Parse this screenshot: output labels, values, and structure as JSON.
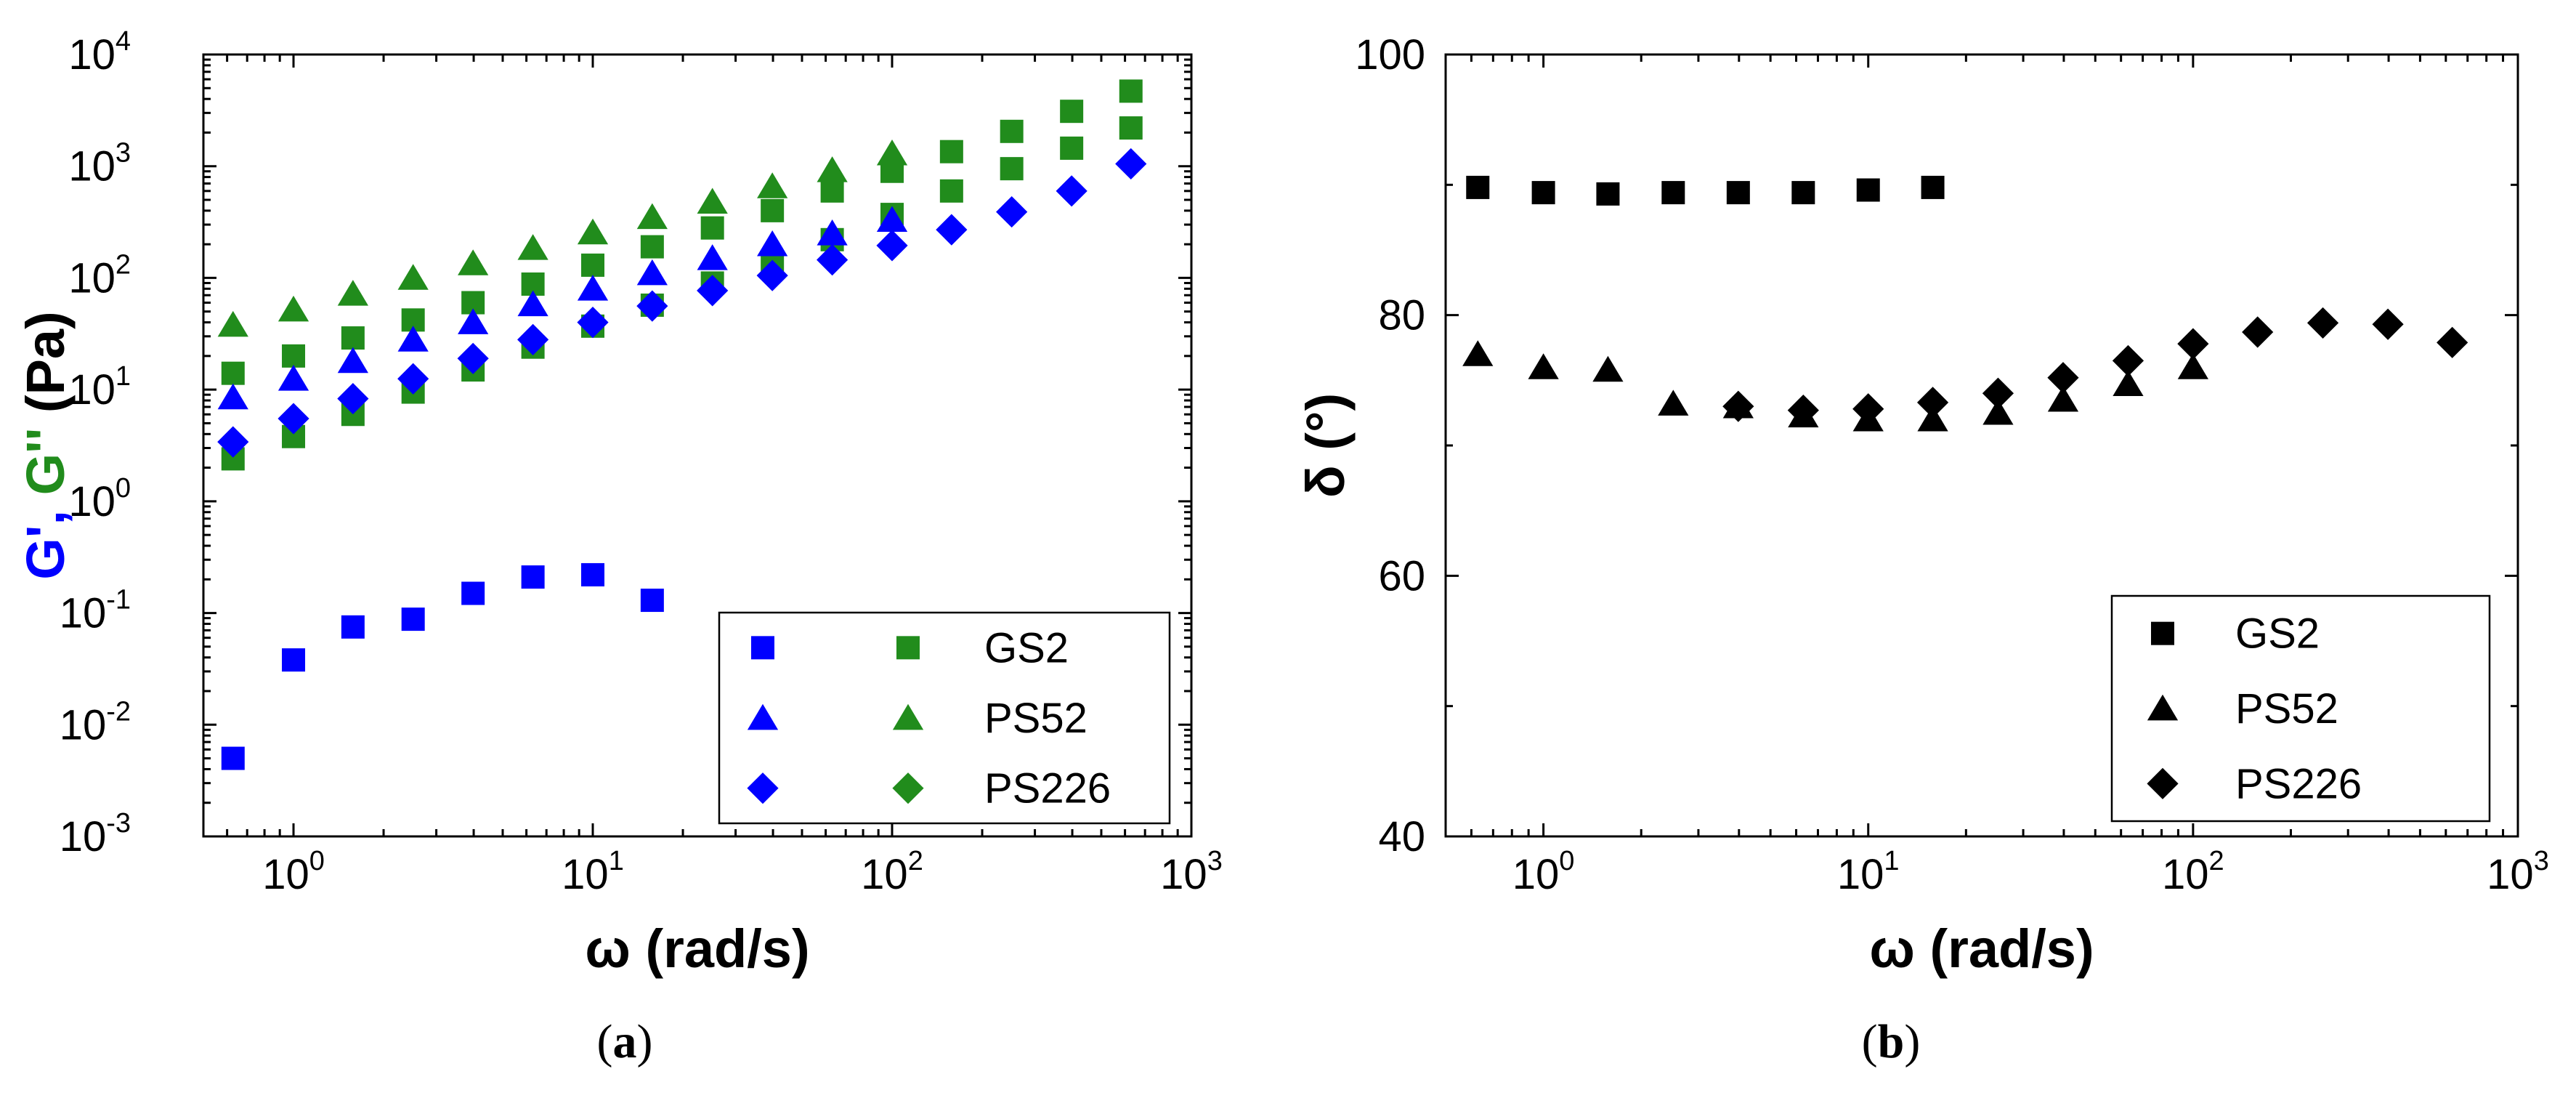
{
  "colors": {
    "storage": "#0000ff",
    "loss": "#218c1c",
    "black": "#000000"
  },
  "chart_data": [
    {
      "panel": "a",
      "type": "scatter",
      "scale": "log-log",
      "caption_letter": "a",
      "xlabel": "ω (rad/s)",
      "ylabel_parts": [
        {
          "text": "G'",
          "color": "#0000ff"
        },
        {
          "text": ", ",
          "color": "#0000ff"
        },
        {
          "text": "G''",
          "color": "#218c1c"
        },
        {
          "text": " (Pa)",
          "color": "#000000"
        }
      ],
      "xlim": [
        0.5,
        1000
      ],
      "ylim": [
        0.001,
        10000
      ],
      "x_ticks": [
        {
          "base": "10",
          "exp": "0"
        },
        {
          "base": "10",
          "exp": "1"
        },
        {
          "base": "10",
          "exp": "2"
        },
        {
          "base": "10",
          "exp": "3"
        }
      ],
      "y_ticks": [
        {
          "base": "10",
          "exp": "-3"
        },
        {
          "base": "10",
          "exp": "-2"
        },
        {
          "base": "10",
          "exp": "-1"
        },
        {
          "base": "10",
          "exp": "0"
        },
        {
          "base": "10",
          "exp": "1"
        },
        {
          "base": "10",
          "exp": "2"
        },
        {
          "base": "10",
          "exp": "3"
        },
        {
          "base": "10",
          "exp": "4"
        }
      ],
      "legend": {
        "position": "bottom-right",
        "entries": [
          {
            "label": "GS2",
            "marker": "square"
          },
          {
            "label": "PS52",
            "marker": "triangle"
          },
          {
            "label": "PS226",
            "marker": "diamond"
          }
        ]
      },
      "series": [
        {
          "name": "GS2 G'",
          "marker": "square",
          "color": "#0000ff",
          "x": [
            0.628,
            1.0,
            1.58,
            2.51,
            3.98,
            6.31,
            10.0,
            15.8
          ],
          "y": [
            0.005,
            0.038,
            0.075,
            0.088,
            0.15,
            0.21,
            0.22,
            0.13
          ]
        },
        {
          "name": "GS2 G''",
          "marker": "square",
          "color": "#218c1c",
          "x": [
            0.628,
            1.0,
            1.58,
            2.51,
            3.98,
            6.31,
            10.0,
            15.8,
            25.1,
            39.8,
            63.1,
            100,
            158,
            251,
            398,
            628
          ],
          "y": [
            14,
            20,
            29,
            42,
            60,
            88,
            130,
            190,
            280,
            400,
            600,
            900,
            1350,
            2050,
            3100,
            4700
          ]
        },
        {
          "name": "GS2 G'' (lower)",
          "marker": "square",
          "color": "#218c1c",
          "x": [
            0.628,
            1.0,
            1.58,
            2.51,
            3.98,
            6.31,
            10.0,
            15.8,
            25.1,
            39.8,
            63.1,
            100,
            158,
            251,
            398,
            628
          ],
          "y": [
            2.4,
            3.8,
            6,
            9.5,
            15,
            24,
            37,
            57,
            90,
            140,
            220,
            370,
            600,
            950,
            1450,
            2200
          ]
        },
        {
          "name": "PS52 G'",
          "marker": "triangle",
          "color": "#0000ff",
          "x": [
            0.628,
            1.0,
            1.58,
            2.51,
            3.98,
            6.31,
            10.0,
            15.8,
            25.1,
            39.8,
            63.1,
            100
          ],
          "y": [
            8.5,
            12.5,
            18,
            28,
            40,
            58,
            80,
            110,
            150,
            200,
            250,
            330
          ]
        },
        {
          "name": "PS52 G''",
          "marker": "triangle",
          "color": "#218c1c",
          "x": [
            0.628,
            1.0,
            1.58,
            2.51,
            3.98,
            6.31,
            10.0,
            15.8,
            25.1,
            39.8,
            63.1,
            100
          ],
          "y": [
            38,
            52,
            72,
            100,
            135,
            185,
            255,
            350,
            480,
            660,
            920,
            1300
          ]
        },
        {
          "name": "PS226 G'",
          "marker": "diamond",
          "color": "#0000ff",
          "x": [
            0.628,
            1.0,
            1.58,
            2.51,
            3.98,
            6.31,
            10.0,
            15.8,
            25.1,
            39.8,
            63.1,
            100,
            158,
            251,
            398,
            628
          ],
          "y": [
            3.4,
            5.5,
            8.3,
            12.5,
            19,
            28,
            40,
            56,
            77,
            105,
            145,
            195,
            270,
            390,
            600,
            1050
          ]
        }
      ]
    },
    {
      "panel": "b",
      "type": "scatter",
      "scale": "log-x",
      "caption_letter": "b",
      "xlabel": "ω (rad/s)",
      "ylabel": "δ (°)",
      "xlim": [
        0.5,
        1000
      ],
      "ylim": [
        40,
        100
      ],
      "x_ticks": [
        {
          "base": "10",
          "exp": "0"
        },
        {
          "base": "10",
          "exp": "1"
        },
        {
          "base": "10",
          "exp": "2"
        },
        {
          "base": "10",
          "exp": "3"
        }
      ],
      "y_ticks": [
        "40",
        "60",
        "80",
        "100"
      ],
      "legend": {
        "position": "bottom-right",
        "entries": [
          {
            "label": "GS2",
            "marker": "square"
          },
          {
            "label": "PS52",
            "marker": "triangle"
          },
          {
            "label": "PS226",
            "marker": "diamond"
          }
        ]
      },
      "series": [
        {
          "name": "GS2",
          "marker": "square",
          "color": "#000000",
          "x": [
            0.628,
            1.0,
            1.58,
            2.51,
            3.98,
            6.31,
            10.0,
            15.8
          ],
          "y": [
            89.8,
            89.4,
            89.3,
            89.4,
            89.4,
            89.4,
            89.6,
            89.8
          ]
        },
        {
          "name": "PS52",
          "marker": "triangle",
          "color": "#000000",
          "x": [
            0.628,
            1.0,
            1.58,
            2.51,
            3.98,
            6.31,
            10.0,
            15.8,
            25.1,
            39.8,
            63.1,
            100
          ],
          "y": [
            77.0,
            76.0,
            75.8,
            73.2,
            73.0,
            72.3,
            72.0,
            72.0,
            72.5,
            73.5,
            74.7,
            76.0
          ]
        },
        {
          "name": "PS226",
          "marker": "diamond",
          "color": "#000000",
          "x": [
            3.98,
            6.31,
            10.0,
            15.8,
            25.1,
            39.8,
            63.1,
            100,
            158,
            251,
            398,
            628
          ],
          "y": [
            73.0,
            72.7,
            72.8,
            73.3,
            74.0,
            75.2,
            76.5,
            77.8,
            78.7,
            79.4,
            79.3,
            77.9
          ]
        }
      ]
    }
  ]
}
